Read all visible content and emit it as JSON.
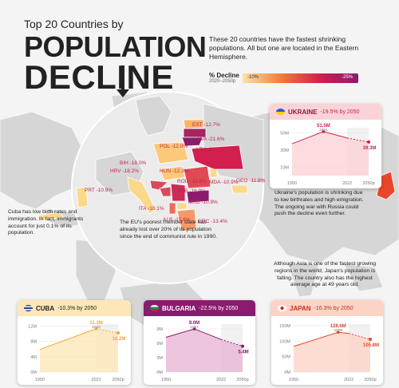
{
  "title": {
    "line1": "Top 20 Countries by",
    "line2": "POPULATION",
    "line3": "DECLINE"
  },
  "intro": "These 20 countries have the fastest shrinking populations. All but one are located in the Eastern Hemisphere.",
  "legend": {
    "title": "% Decline",
    "subtitle": "2020–2050p",
    "low": "-10%",
    "high": "-25%",
    "colors": [
      "#fbe3a5",
      "#f07c3c",
      "#d21f4d",
      "#8a1b6e"
    ]
  },
  "map_labels": [
    {
      "text": "EST -12.7%"
    },
    {
      "text": "LVA -21.6%"
    },
    {
      "text": "LTU -22.1%"
    },
    {
      "text": "POL -12.0%"
    },
    {
      "text": "BIH -18.0%"
    },
    {
      "text": "HRV -18.2%"
    },
    {
      "text": "HUN -12.3%"
    },
    {
      "text": "ROU -15.8%"
    },
    {
      "text": "MDA -10.9%"
    },
    {
      "text": "SRB -18.9%"
    },
    {
      "text": "MKD -10.9%"
    },
    {
      "text": "GEO -11.8%"
    },
    {
      "text": "PRT -10.9%"
    },
    {
      "text": "ITA -10.1%"
    },
    {
      "text": "ALB -15.6%"
    },
    {
      "text": "GRC -13.4%"
    }
  ],
  "notes": {
    "cuba": "Cuba has low birth rates and immigration. In fact, immigrants account for just 0.1% of its population.",
    "bulgaria": "The EU's poorest member state has already lost over 20% of its population since the end of communist rule in 1990.",
    "ukraine": "Ukraine's population is shrinking due to low birthrates and high emigration. The ongoing war with Russia could push the decline even further.",
    "japan": "Although Asia is one of the fastest growing regions in the world, Japan's population is falling. The country also has the highest average age at 49 years old."
  },
  "chart_data": [
    {
      "type": "area",
      "country": "UKRAINE",
      "decline": "-19.5% by 2050",
      "accent": "#d21f4d",
      "header_bg": "#fbd3d7",
      "x": [
        1950,
        1991,
        2022,
        2050
      ],
      "y": [
        37.3,
        51.5,
        44.0,
        39.3
      ],
      "yticks": [
        "50M",
        "30M",
        "10M"
      ],
      "ytick_values": [
        50,
        30,
        10
      ],
      "ylim": [
        0,
        56
      ],
      "xticks": [
        "1950",
        "2022",
        "2050p"
      ],
      "peak": {
        "value": "51.5M",
        "year": "1991"
      },
      "end": {
        "value": "39.3M"
      }
    },
    {
      "type": "area",
      "country": "CUBA",
      "decline": "-10.3% by 2050",
      "accent": "#f4a53c",
      "header_bg": "#fde7b8",
      "x": [
        1950,
        2022,
        2050
      ],
      "y": [
        5.9,
        11.3,
        10.2
      ],
      "yticks": [
        "12M",
        "8M",
        "4M",
        "0M"
      ],
      "ytick_values": [
        12,
        8,
        4,
        0
      ],
      "ylim": [
        0,
        12.5
      ],
      "xticks": [
        "1950",
        "2022",
        "2050p"
      ],
      "peak": {
        "value": "11.3M",
        "year": "2022"
      },
      "end": {
        "value": "10.2M"
      }
    },
    {
      "type": "area",
      "country": "BULGARIA",
      "decline": "-22.5% by 2050",
      "accent": "#8a1b6e",
      "header_bg": "#e8b6d4",
      "x": [
        1950,
        1987,
        2022,
        2050
      ],
      "y": [
        7.25,
        9.0,
        6.8,
        5.4
      ],
      "yticks": [
        "9M",
        "6M",
        "3M",
        "0M"
      ],
      "ytick_values": [
        9,
        6,
        3,
        0
      ],
      "ylim": [
        0,
        10
      ],
      "xticks": [
        "1950",
        "2022",
        "2050p"
      ],
      "peak": {
        "value": "9.0M",
        "year": "1987"
      },
      "end": {
        "value": "5.4M"
      }
    },
    {
      "type": "area",
      "country": "JAPAN",
      "decline": "-16.3% by 2050",
      "accent": "#e8462a",
      "header_bg": "#fcd4c6",
      "x": [
        1950,
        2008,
        2022,
        2050
      ],
      "y": [
        83,
        128.6,
        125,
        105.8
      ],
      "yticks": [
        "150M",
        "100M",
        "50M",
        "0M"
      ],
      "ytick_values": [
        150,
        100,
        50,
        0
      ],
      "ylim": [
        0,
        155
      ],
      "xticks": [
        "1950",
        "2022",
        "2050p"
      ],
      "peak": {
        "value": "128.6M",
        "year": "2008"
      },
      "end": {
        "value": "105.8M"
      }
    }
  ]
}
